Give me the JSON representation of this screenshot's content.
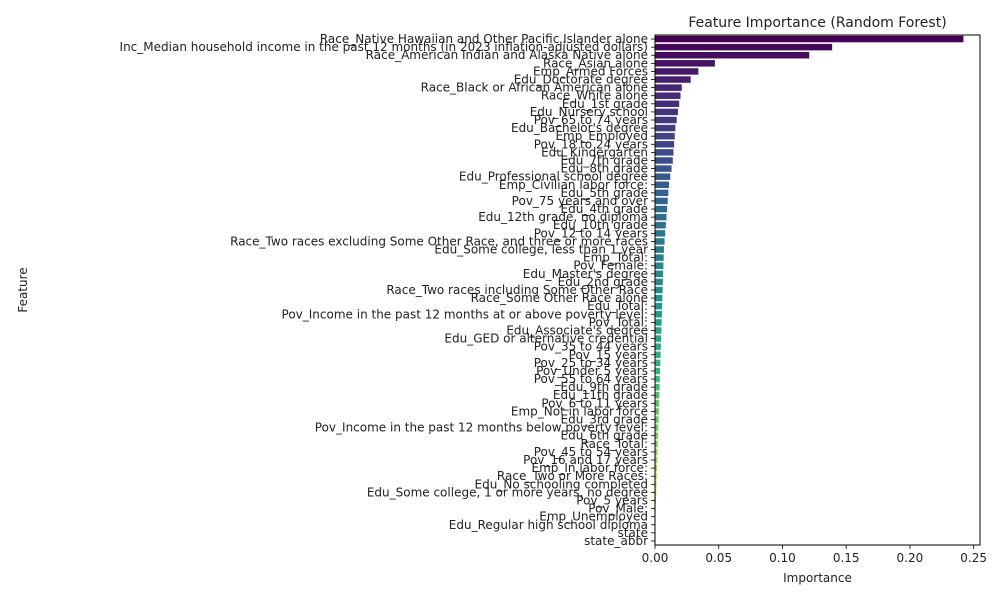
{
  "chart_data": {
    "type": "bar",
    "orientation": "horizontal",
    "title": "Feature Importance (Random Forest)",
    "xlabel": "Importance",
    "ylabel": "Feature",
    "xlim": [
      0,
      0.255
    ],
    "xticks": [
      "0.00",
      "0.05",
      "0.10",
      "0.15",
      "0.20",
      "0.25"
    ],
    "xtick_values": [
      0,
      0.05,
      0.1,
      0.15,
      0.2,
      0.25
    ],
    "grid": false,
    "legend": "none",
    "colormap": "viridis",
    "categories": [
      "Race_Native Hawaiian and Other Pacific Islander alone",
      "Inc_Median household income in the past 12 months (in 2023 inflation-adjusted dollars)",
      "Race_American Indian and Alaska Native alone",
      "Race_Asian alone",
      "Emp_Armed Forces",
      "Edu_Doctorate degree",
      "Race_Black or African American alone",
      "Race_White alone",
      "Edu_1st grade",
      "Edu_Nursery school",
      "Pov_65 to 74 years",
      "Edu_Bachelor's degree",
      "Emp_Employed",
      "Pov_18 to 24 years",
      "Edu_Kindergarten",
      "Edu_7th grade",
      "Edu_8th grade",
      "Edu_Professional school degree",
      "Emp_Civilian labor force:",
      "Edu_5th grade",
      "Pov_75 years and over",
      "Edu_4th grade",
      "Edu_12th grade, no diploma",
      "Edu_10th grade",
      "Pov_12 to 14 years",
      "Race_Two races excluding Some Other Race, and three or more races",
      "Edu_Some college, less than 1 year",
      "Emp_Total:",
      "Pov_Female:",
      "Edu_Master's degree",
      "Edu_2nd grade",
      "Race_Two races including Some Other Race",
      "Race_Some Other Race alone",
      "Edu_Total:",
      "Pov_Income in the past 12 months at or above poverty level:",
      "Pov_Total:",
      "Edu_Associate's degree",
      "Edu_GED or alternative credential",
      "Pov_35 to 44 years",
      "Pov_15 years",
      "Pov_25 to 34 years",
      "Pov_Under 5 years",
      "Pov_55 to 64 years",
      "Edu_9th grade",
      "Edu_11th grade",
      "Pov_6 to 11 years",
      "Emp_Not in labor force",
      "Edu_3rd grade",
      "Pov_Income in the past 12 months below poverty level:",
      "Edu_6th grade",
      "Race_Total:",
      "Pov_45 to 54 years",
      "Pov_16 and 17 years",
      "Emp_In labor force:",
      "Race_Two or More Races:",
      "Edu_No schooling completed",
      "Edu_Some college, 1 or more years, no degree",
      "Pov_5 years",
      "Pov_Male:",
      "Emp_Unemployed",
      "Edu_Regular high school diploma",
      "state",
      "state_abbr"
    ],
    "values": [
      0.242,
      0.139,
      0.121,
      0.047,
      0.034,
      0.028,
      0.021,
      0.02,
      0.019,
      0.018,
      0.017,
      0.016,
      0.0155,
      0.015,
      0.0145,
      0.014,
      0.013,
      0.012,
      0.011,
      0.0105,
      0.01,
      0.0095,
      0.009,
      0.0085,
      0.008,
      0.0075,
      0.007,
      0.0068,
      0.0066,
      0.0064,
      0.0062,
      0.006,
      0.0058,
      0.0056,
      0.0054,
      0.0052,
      0.005,
      0.0048,
      0.0046,
      0.0044,
      0.0042,
      0.004,
      0.0038,
      0.0036,
      0.0034,
      0.0032,
      0.003,
      0.0028,
      0.0026,
      0.0024,
      0.0022,
      0.002,
      0.0018,
      0.0016,
      0.0014,
      0.0012,
      0.001,
      0.0008,
      0.0006,
      0.0004,
      0.0002,
      0.0,
      0.0
    ]
  }
}
